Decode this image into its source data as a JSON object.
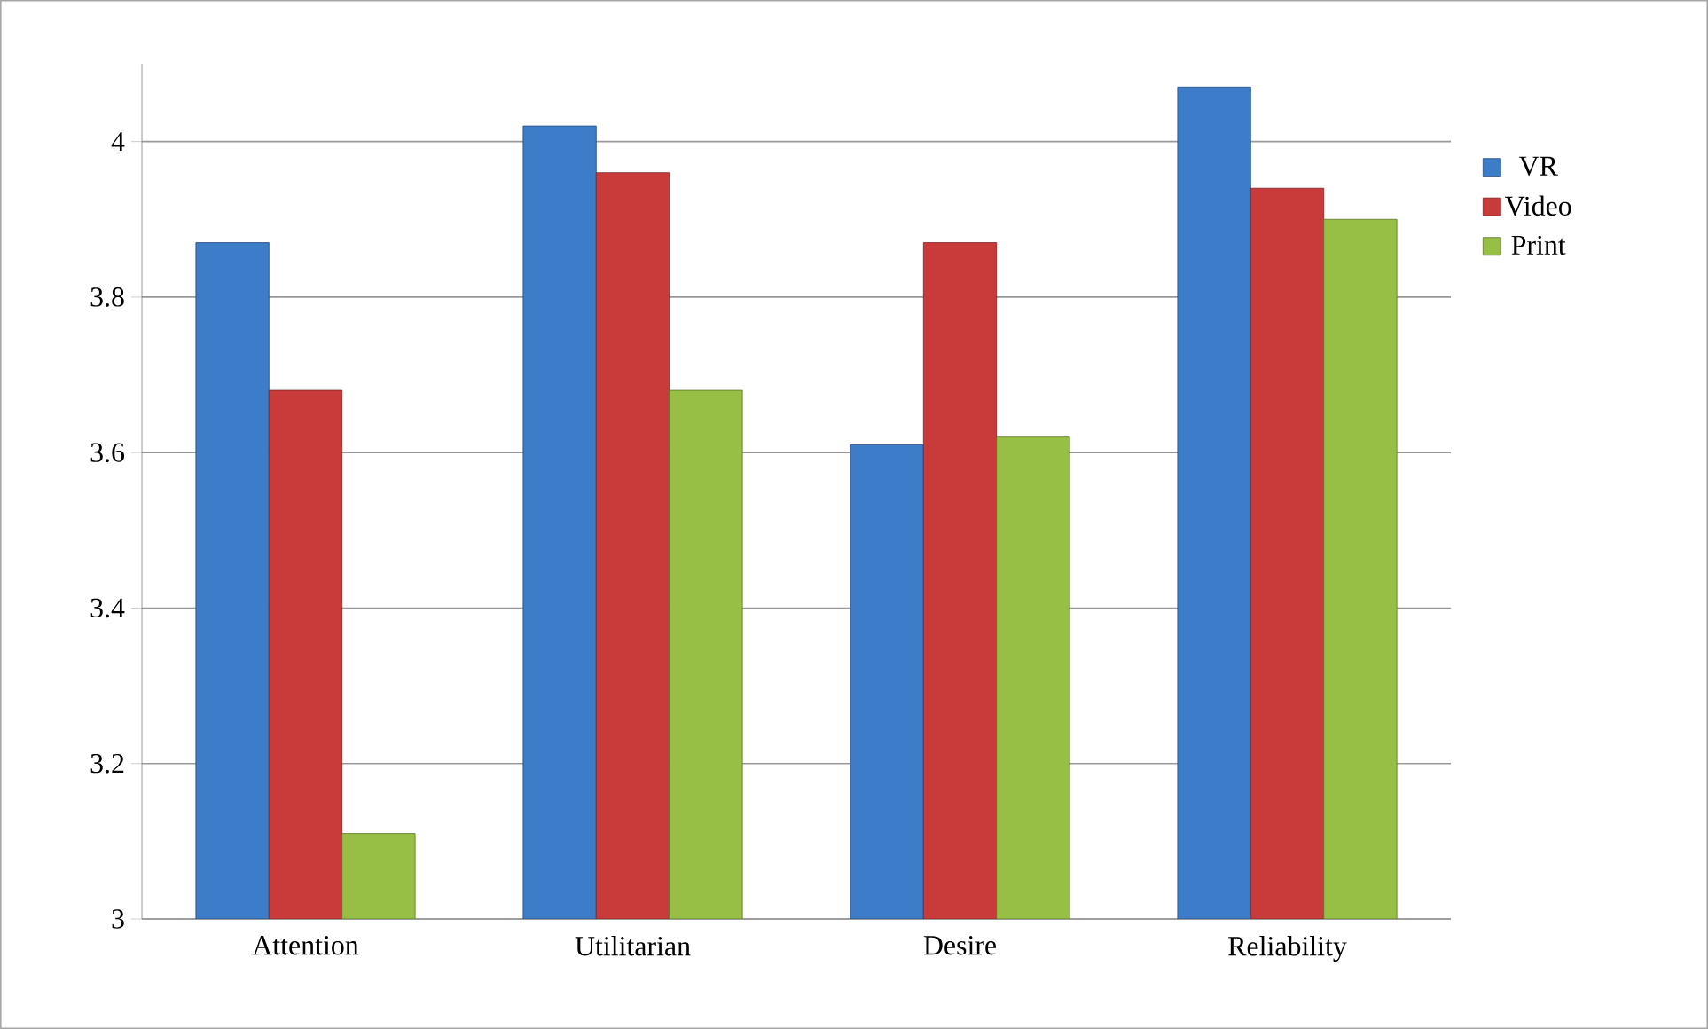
{
  "chart_data": {
    "type": "bar",
    "categories": [
      "Attention",
      "Utilitarian",
      "Desire",
      "Reliability"
    ],
    "series": [
      {
        "name": "VR",
        "color": "#3d7cc9",
        "values": [
          3.87,
          4.02,
          3.61,
          4.07
        ]
      },
      {
        "name": "Video",
        "color": "#c93b3b",
        "values": [
          3.68,
          3.96,
          3.87,
          3.94
        ]
      },
      {
        "name": "Print",
        "color": "#98bf45",
        "values": [
          3.11,
          3.68,
          3.62,
          3.9
        ]
      }
    ],
    "ylim": [
      3,
      4.1
    ],
    "yticks": [
      3,
      3.2,
      3.4,
      3.6,
      3.8,
      4
    ],
    "grid": "y",
    "legend": "right"
  }
}
